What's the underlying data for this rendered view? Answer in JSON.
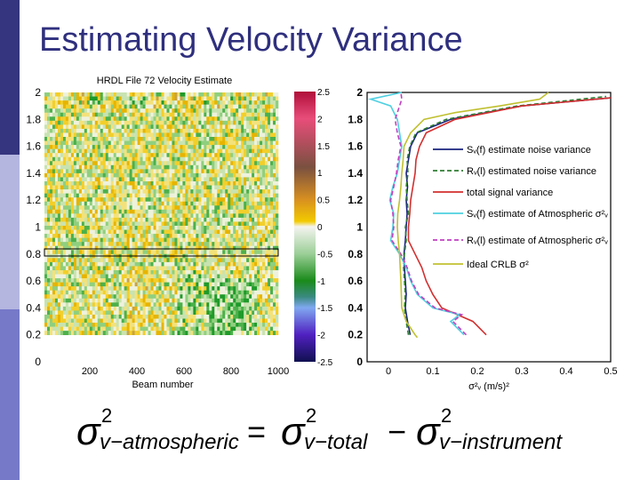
{
  "slide": {
    "title": "Estimating Velocity Variance",
    "sidebar_colors": [
      "#35357f",
      "#b4b6e0",
      "#7679c8"
    ],
    "title_color": "#2f2f7e"
  },
  "formula": {
    "lhs_symbol": "σ",
    "lhs_sup": "2",
    "lhs_sub": "v−atmospheric",
    "equals": "=",
    "t1_symbol": "σ",
    "t1_sup": "2",
    "t1_sub": "v−total",
    "minus": "−",
    "t2_symbol": "σ",
    "t2_sup": "2",
    "t2_sub": "v−instrument"
  },
  "chart_data": [
    {
      "type": "heatmap",
      "title": "HRDL File 72 Velocity Estimate",
      "xlabel": "Beam number",
      "ylabel": "",
      "xlim": [
        0,
        1000
      ],
      "ylim": [
        0,
        2
      ],
      "xticks": [
        "200",
        "400",
        "600",
        "800",
        "1000"
      ],
      "yticks": [
        "0",
        "0.2",
        "0.4",
        "0.6",
        "0.8",
        "1",
        "1.2",
        "1.4",
        "1.6",
        "1.8",
        "2"
      ],
      "colorbar": {
        "range": [
          -2.5,
          2.5
        ],
        "ticks": [
          "2.5",
          "2",
          "1.5",
          "1",
          "0.5",
          "0",
          "-0.5",
          "-1",
          "-1.5",
          "-2",
          "-2.5"
        ],
        "colors": [
          "#b0103a",
          "#e84d7a",
          "#7a5040",
          "#d89020",
          "#f2ca00",
          "#f4f4f0",
          "#9ccf98",
          "#1a8a1a",
          "#3a8a80",
          "#80a8f0",
          "#5020c0",
          "#101050"
        ]
      },
      "highlight_box_y": 0.8
    },
    {
      "type": "line",
      "xlabel": "σ²ᵥ (m/s)²",
      "ylabel": "",
      "xlim": [
        -0.05,
        0.5
      ],
      "ylim": [
        0,
        2
      ],
      "xticks": [
        "0",
        "0.1",
        "0.2",
        "0.3",
        "0.4",
        "0.5"
      ],
      "yticks": [
        "0",
        "0.2",
        "0.4",
        "0.6",
        "0.8",
        "1",
        "1.2",
        "1.4",
        "1.6",
        "1.8",
        "2"
      ],
      "legend_position": "center-right",
      "series": [
        {
          "name": "Sᵥ(f) estimate noise variance",
          "color": "#1a237e",
          "dash": false,
          "x": [
            0.049,
            0.043,
            0.038,
            0.04,
            0.038,
            0.036,
            0.035,
            0.038,
            0.04,
            0.042,
            0.04,
            0.043,
            0.04,
            0.045,
            0.05,
            0.065,
            0.14,
            0.3,
            0.5
          ],
          "y": [
            0.2,
            0.3,
            0.4,
            0.5,
            0.6,
            0.7,
            0.8,
            0.9,
            1.0,
            1.1,
            1.2,
            1.3,
            1.4,
            1.5,
            1.6,
            1.7,
            1.8,
            1.9,
            1.96
          ]
        },
        {
          "name": "Rᵥ(l) estimated noise variance",
          "color": "#2e7d32",
          "dash": true,
          "x": [
            0.045,
            0.04,
            0.036,
            0.038,
            0.036,
            0.034,
            0.036,
            0.04,
            0.038,
            0.045,
            0.042,
            0.04,
            0.044,
            0.042,
            0.048,
            0.062,
            0.13,
            0.29,
            0.49
          ],
          "y": [
            0.2,
            0.3,
            0.4,
            0.5,
            0.6,
            0.7,
            0.8,
            0.9,
            1.0,
            1.1,
            1.2,
            1.3,
            1.4,
            1.5,
            1.6,
            1.7,
            1.8,
            1.9,
            1.97
          ]
        },
        {
          "name": "total signal variance",
          "color": "#d32f2f",
          "dash": false,
          "x": [
            0.22,
            0.19,
            0.12,
            0.1,
            0.085,
            0.075,
            0.06,
            0.045,
            0.045,
            0.048,
            0.05,
            0.055,
            0.06,
            0.062,
            0.07,
            0.085,
            0.15,
            0.3,
            0.5
          ],
          "y": [
            0.2,
            0.3,
            0.4,
            0.5,
            0.6,
            0.7,
            0.8,
            0.9,
            1.0,
            1.1,
            1.2,
            1.3,
            1.4,
            1.5,
            1.6,
            1.7,
            1.8,
            1.9,
            1.96
          ]
        },
        {
          "name": "Sᵥ(f) estimate of Atmospheric σ²ᵥ",
          "color": "#4dd0e1",
          "dash": false,
          "x": [
            0.17,
            0.14,
            0.16,
            0.1,
            0.065,
            0.05,
            0.04,
            0.025,
            0.005,
            0.01,
            0.012,
            0.003,
            0.01,
            0.02,
            0.025,
            0.03,
            0.025,
            0.02,
            0.005,
            -0.04,
            0.03
          ],
          "y": [
            0.2,
            0.3,
            0.35,
            0.4,
            0.5,
            0.6,
            0.7,
            0.8,
            0.9,
            1.0,
            1.1,
            1.2,
            1.3,
            1.4,
            1.5,
            1.6,
            1.7,
            1.8,
            1.9,
            1.95,
            2.0
          ]
        },
        {
          "name": "Rᵥ(l) estimate of Atmospheric σ²ᵥ",
          "color": "#c040c0",
          "dash": true,
          "x": [
            0.175,
            0.145,
            0.165,
            0.105,
            0.068,
            0.052,
            0.042,
            0.028,
            0.008,
            0.012,
            0.01,
            0.005,
            0.012,
            0.018,
            0.022,
            0.028,
            0.02,
            0.015,
            0.025,
            0.03,
            0.028
          ],
          "y": [
            0.2,
            0.3,
            0.35,
            0.4,
            0.5,
            0.6,
            0.7,
            0.8,
            0.9,
            1.0,
            1.1,
            1.2,
            1.3,
            1.4,
            1.5,
            1.6,
            1.7,
            1.8,
            1.9,
            1.95,
            2.0
          ]
        },
        {
          "name": "Ideal CRLB σ²",
          "color": "#c0c030",
          "dash": false,
          "x": [
            0.065,
            0.06,
            0.04,
            0.03,
            0.029,
            0.028,
            0.025,
            0.022,
            0.02,
            0.021,
            0.025,
            0.028,
            0.03,
            0.033,
            0.035,
            0.05,
            0.08,
            0.15,
            0.25,
            0.34,
            0.36
          ],
          "y": [
            0.18,
            0.2,
            0.3,
            0.4,
            0.5,
            0.6,
            0.8,
            0.9,
            1.0,
            1.1,
            1.2,
            1.3,
            1.4,
            1.5,
            1.6,
            1.7,
            1.8,
            1.85,
            1.9,
            1.95,
            2.0
          ]
        }
      ]
    }
  ]
}
